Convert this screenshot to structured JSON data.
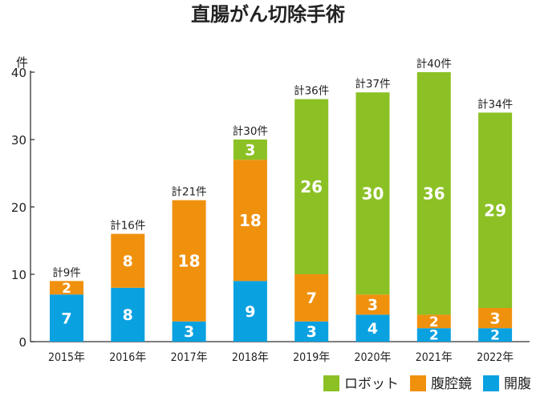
{
  "chart_data": {
    "type": "bar",
    "stacked": true,
    "title": "直腸がん切除手術",
    "unit_label": "件",
    "ylim": [
      0,
      40
    ],
    "yticks": [
      0,
      10,
      20,
      30,
      40
    ],
    "categories": [
      "2015年",
      "2016年",
      "2017年",
      "2018年",
      "2019年",
      "2020年",
      "2021年",
      "2022年"
    ],
    "series": [
      {
        "name": "開腹",
        "color": "#0aa1e1",
        "values": [
          7,
          8,
          3,
          9,
          3,
          4,
          2,
          2
        ]
      },
      {
        "name": "腹腔鏡",
        "color": "#f0910e",
        "values": [
          2,
          8,
          18,
          18,
          7,
          3,
          2,
          3
        ]
      },
      {
        "name": "ロボット",
        "color": "#8cc125",
        "values": [
          0,
          0,
          0,
          3,
          26,
          30,
          36,
          29
        ]
      }
    ],
    "totals": [
      "計9件",
      "計16件",
      "計21件",
      "計30件",
      "計36件",
      "計37件",
      "計40件",
      "計34件"
    ],
    "legend_order": [
      "ロボット",
      "腹腔鏡",
      "開腹"
    ],
    "legend_position": "bottom-right",
    "grid": false
  }
}
